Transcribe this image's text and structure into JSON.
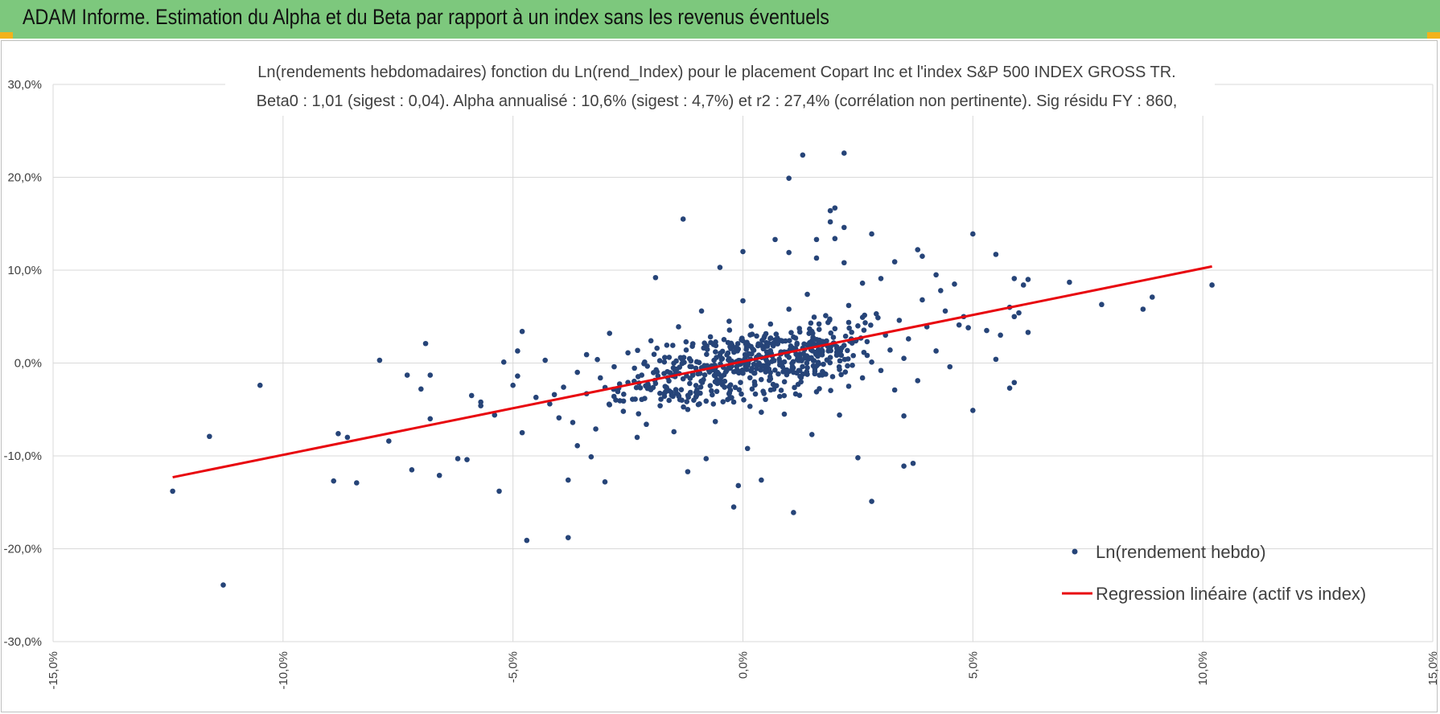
{
  "banner": {
    "title": "ADAM Informe. Estimation du Alpha et du Beta par rapport à un index sans les revenus éventuels",
    "color": "#7dc87d",
    "corner_color": "#f2b21b"
  },
  "chart_data": {
    "type": "scatter",
    "title": "Ln(rendements hebdomadaires) fonction du Ln(rend_Index) pour le placement Copart Inc et l'index S&P 500 INDEX GROSS TR.",
    "subtitle": "Beta0 : 1,01 (sigest : 0,04).  Alpha annualisé : 10,6% (sigest : 4,7%) et r2 : 27,4% (corrélation non pertinente). Sig résidu FY : 860,",
    "xlim": [
      -15,
      15
    ],
    "ylim": [
      -30,
      30
    ],
    "x_ticks": [
      -15,
      -10,
      -5,
      0,
      5,
      10,
      15
    ],
    "y_ticks": [
      30,
      20,
      10,
      0,
      -10,
      -20,
      -30
    ],
    "x_tick_labels": [
      "-15,0%",
      "-10,0%",
      "-5,0%",
      "0,0%",
      "5,0%",
      "10,0%",
      "15,0%"
    ],
    "y_tick_labels": [
      "30,0%",
      "20,0%",
      "10,0%",
      "0,0%",
      "-10,0%",
      "-20,0%",
      "-30,0%"
    ],
    "grid": true,
    "legend_position": "bottom-right",
    "series": [
      {
        "name": "Ln(rendement hebdo)",
        "kind": "scatter",
        "color": "#264478",
        "points": [
          [
            -12.4,
            -13.8
          ],
          [
            -11.6,
            -7.9
          ],
          [
            -11.3,
            -23.9
          ],
          [
            -10.5,
            -2.4
          ],
          [
            -8.9,
            -12.7
          ],
          [
            -8.8,
            -7.6
          ],
          [
            -8.6,
            -8.0
          ],
          [
            -8.4,
            -12.9
          ],
          [
            -7.9,
            0.3
          ],
          [
            -7.7,
            -8.4
          ],
          [
            -7.3,
            -1.3
          ],
          [
            -7.2,
            -11.5
          ],
          [
            -7.0,
            -2.8
          ],
          [
            -6.9,
            2.1
          ],
          [
            -6.8,
            -1.3
          ],
          [
            -6.8,
            -6.0
          ],
          [
            -6.6,
            -12.1
          ],
          [
            -6.2,
            -10.3
          ],
          [
            -6.0,
            -10.4
          ],
          [
            -5.9,
            -3.5
          ],
          [
            -5.7,
            -4.2
          ],
          [
            -5.7,
            -4.6
          ],
          [
            -5.4,
            -5.6
          ],
          [
            -5.3,
            -13.8
          ],
          [
            -5.2,
            0.1
          ],
          [
            -5.0,
            -2.4
          ],
          [
            -4.9,
            1.3
          ],
          [
            -4.8,
            3.4
          ],
          [
            -4.8,
            -7.5
          ],
          [
            -4.7,
            -19.1
          ],
          [
            -4.3,
            0.3
          ],
          [
            -4.1,
            -3.4
          ],
          [
            -3.8,
            -12.6
          ],
          [
            -3.8,
            -18.8
          ],
          [
            -3.6,
            -8.9
          ],
          [
            -3.4,
            0.9
          ],
          [
            -3.3,
            -10.1
          ],
          [
            -3.0,
            -12.8
          ],
          [
            -2.9,
            3.2
          ],
          [
            -1.9,
            9.2
          ],
          [
            -1.3,
            15.5
          ],
          [
            -1.2,
            -11.7
          ],
          [
            -0.8,
            -10.3
          ],
          [
            -0.5,
            10.3
          ],
          [
            -0.2,
            -15.5
          ],
          [
            -0.1,
            -13.2
          ],
          [
            0.0,
            12.0
          ],
          [
            0.1,
            -9.2
          ],
          [
            0.4,
            -12.6
          ],
          [
            0.7,
            13.3
          ],
          [
            0.9,
            -5.5
          ],
          [
            1.0,
            19.9
          ],
          [
            1.0,
            11.9
          ],
          [
            1.1,
            -16.1
          ],
          [
            1.3,
            22.4
          ],
          [
            1.5,
            -7.7
          ],
          [
            1.6,
            13.3
          ],
          [
            1.6,
            11.3
          ],
          [
            1.9,
            16.4
          ],
          [
            1.9,
            15.2
          ],
          [
            2.0,
            16.7
          ],
          [
            2.0,
            13.4
          ],
          [
            2.1,
            -5.6
          ],
          [
            2.2,
            22.6
          ],
          [
            2.2,
            14.6
          ],
          [
            2.2,
            10.8
          ],
          [
            2.5,
            -10.2
          ],
          [
            2.6,
            8.6
          ],
          [
            2.8,
            13.9
          ],
          [
            2.8,
            -14.9
          ],
          [
            3.0,
            9.1
          ],
          [
            3.3,
            10.9
          ],
          [
            3.5,
            -11.1
          ],
          [
            3.5,
            -5.7
          ],
          [
            3.7,
            -10.8
          ],
          [
            3.8,
            12.2
          ],
          [
            3.9,
            6.8
          ],
          [
            3.9,
            11.5
          ],
          [
            4.2,
            9.5
          ],
          [
            4.3,
            7.8
          ],
          [
            4.6,
            8.5
          ],
          [
            4.7,
            4.1
          ],
          [
            4.8,
            5.0
          ],
          [
            4.9,
            3.8
          ],
          [
            5.0,
            13.9
          ],
          [
            5.0,
            -5.1
          ],
          [
            5.3,
            3.5
          ],
          [
            5.5,
            0.4
          ],
          [
            5.5,
            11.7
          ],
          [
            5.6,
            3.0
          ],
          [
            5.8,
            6.0
          ],
          [
            5.9,
            9.1
          ],
          [
            5.8,
            -2.7
          ],
          [
            6.1,
            8.4
          ],
          [
            5.9,
            -2.1
          ],
          [
            5.9,
            5.0
          ],
          [
            6.0,
            5.4
          ],
          [
            6.2,
            9.0
          ],
          [
            6.2,
            3.3
          ],
          [
            7.1,
            8.7
          ],
          [
            7.8,
            6.3
          ],
          [
            8.7,
            5.8
          ],
          [
            8.9,
            7.1
          ],
          [
            10.2,
            8.4
          ],
          [
            -4.9,
            -1.4
          ],
          [
            -4.5,
            -3.7
          ],
          [
            -4.2,
            -4.4
          ],
          [
            -4.0,
            -5.9
          ],
          [
            -3.9,
            -2.6
          ],
          [
            -3.7,
            -6.4
          ],
          [
            -3.6,
            -1.0
          ],
          [
            -3.4,
            -3.3
          ],
          [
            -3.2,
            -7.1
          ],
          [
            -3.1,
            -1.6
          ],
          [
            -2.9,
            -4.5
          ],
          [
            -2.8,
            -0.4
          ],
          [
            -2.7,
            -2.7
          ],
          [
            -2.6,
            -5.2
          ],
          [
            -2.5,
            1.1
          ],
          [
            -2.4,
            -3.9
          ],
          [
            -2.3,
            -8.0
          ],
          [
            -2.2,
            -1.3
          ],
          [
            -2.1,
            -6.6
          ],
          [
            -2.0,
            2.4
          ],
          [
            -1.9,
            -2.2
          ],
          [
            -1.8,
            -4.6
          ],
          [
            -1.7,
            0.6
          ],
          [
            -1.6,
            -3.0
          ],
          [
            -1.5,
            -7.4
          ],
          [
            -1.4,
            3.9
          ],
          [
            -1.3,
            -1.7
          ],
          [
            -1.2,
            -5.0
          ],
          [
            -1.1,
            1.8
          ],
          [
            -1.0,
            -2.9
          ],
          [
            -0.9,
            5.6
          ],
          [
            -0.9,
            -0.5
          ],
          [
            -0.8,
            -4.1
          ],
          [
            -0.7,
            2.2
          ],
          [
            -0.6,
            -1.4
          ],
          [
            -0.6,
            -6.3
          ],
          [
            -0.5,
            0.8
          ],
          [
            -0.4,
            -2.6
          ],
          [
            -0.3,
            4.5
          ],
          [
            -0.3,
            -0.3
          ],
          [
            -0.2,
            -4.2
          ],
          [
            -0.1,
            1.5
          ],
          [
            0.0,
            -1.1
          ],
          [
            0.0,
            6.7
          ],
          [
            0.1,
            0.2
          ],
          [
            0.2,
            -2.8
          ],
          [
            0.2,
            3.1
          ],
          [
            0.3,
            -0.6
          ],
          [
            0.4,
            1.9
          ],
          [
            0.4,
            -5.3
          ],
          [
            0.5,
            0.4
          ],
          [
            0.6,
            4.2
          ],
          [
            0.6,
            -1.7
          ],
          [
            0.7,
            2.5
          ],
          [
            0.8,
            -0.2
          ],
          [
            0.8,
            -3.6
          ],
          [
            0.9,
            1.2
          ],
          [
            1.0,
            5.8
          ],
          [
            1.0,
            -0.9
          ],
          [
            1.1,
            2.8
          ],
          [
            1.2,
            0.3
          ],
          [
            1.2,
            -2.3
          ],
          [
            1.3,
            1.6
          ],
          [
            1.4,
            7.4
          ],
          [
            1.4,
            -0.5
          ],
          [
            1.5,
            3.4
          ],
          [
            1.6,
            0.9
          ],
          [
            1.6,
            -3.1
          ],
          [
            1.7,
            2.0
          ],
          [
            1.8,
            5.1
          ],
          [
            1.8,
            -1.2
          ],
          [
            1.9,
            0.6
          ],
          [
            2.0,
            3.7
          ],
          [
            2.1,
            -0.7
          ],
          [
            2.2,
            1.9
          ],
          [
            2.3,
            6.2
          ],
          [
            2.3,
            -2.5
          ],
          [
            2.4,
            0.8
          ],
          [
            2.5,
            4.0
          ],
          [
            2.6,
            -1.6
          ],
          [
            2.7,
            2.3
          ],
          [
            2.8,
            0.1
          ],
          [
            2.9,
            5.3
          ],
          [
            3.0,
            -0.8
          ],
          [
            3.1,
            3.0
          ],
          [
            3.2,
            1.4
          ],
          [
            3.3,
            -2.9
          ],
          [
            3.4,
            4.6
          ],
          [
            3.5,
            0.5
          ],
          [
            3.6,
            2.6
          ],
          [
            3.8,
            -1.9
          ],
          [
            4.0,
            3.9
          ],
          [
            4.2,
            1.3
          ],
          [
            4.4,
            5.6
          ],
          [
            4.5,
            -0.4
          ]
        ]
      },
      {
        "name": "Regression linéaire (actif vs index)",
        "kind": "line",
        "color": "#e8070e",
        "x": [
          -12.4,
          10.2
        ],
        "y": [
          -12.3,
          10.4
        ]
      }
    ]
  }
}
